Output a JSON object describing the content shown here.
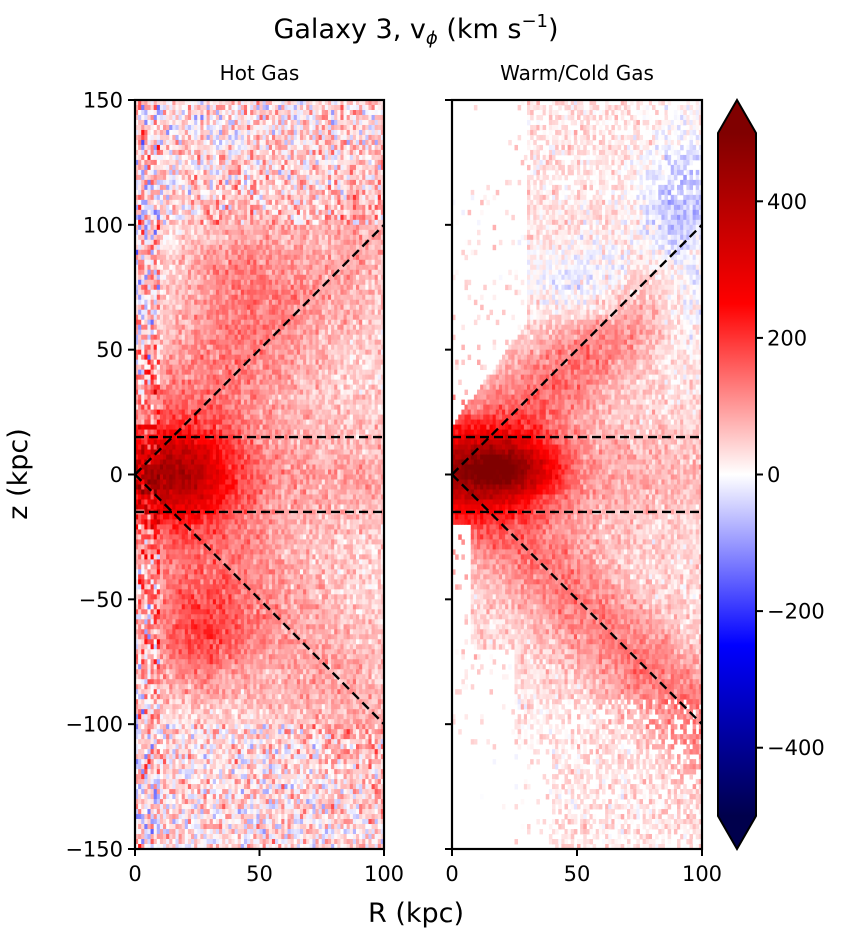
{
  "chart_data": {
    "type": "heatmap",
    "title": "Galaxy 3, v",
    "title_symbol": "ϕ",
    "title_unit_open": " (km s",
    "title_unit_exp": "−1",
    "title_unit_close": ")",
    "xlabel": "R (kpc)",
    "ylabel": "z (kpc)",
    "xlim": [
      0,
      100
    ],
    "ylim": [
      -150,
      150
    ],
    "x_ticks": [
      "0",
      "50",
      "100"
    ],
    "y_ticks": [
      "150",
      "100",
      "50",
      "0",
      "−50",
      "−100",
      "−150"
    ],
    "panels": [
      {
        "title": "Hot Gas",
        "kind": "hot"
      },
      {
        "title": "Warm/Cold Gas",
        "kind": "warm"
      }
    ],
    "overlay_lines": [
      {
        "description": "cone upper",
        "x": [
          0,
          100
        ],
        "y": [
          0,
          100
        ]
      },
      {
        "description": "cone lower",
        "x": [
          0,
          100
        ],
        "y": [
          0,
          -100
        ]
      },
      {
        "description": "disk upper",
        "x": [
          0,
          100
        ],
        "y": [
          15,
          15
        ]
      },
      {
        "description": "disk lower",
        "x": [
          0,
          100
        ],
        "y": [
          -15,
          -15
        ]
      }
    ],
    "colorbar": {
      "colormap": "seismic",
      "vmin": -500,
      "vmax": 500,
      "ticks": [
        400,
        200,
        0,
        -200,
        -400
      ],
      "tick_labels": [
        "400",
        "200",
        "0",
        "−200",
        "−400"
      ],
      "extend": "both"
    }
  }
}
